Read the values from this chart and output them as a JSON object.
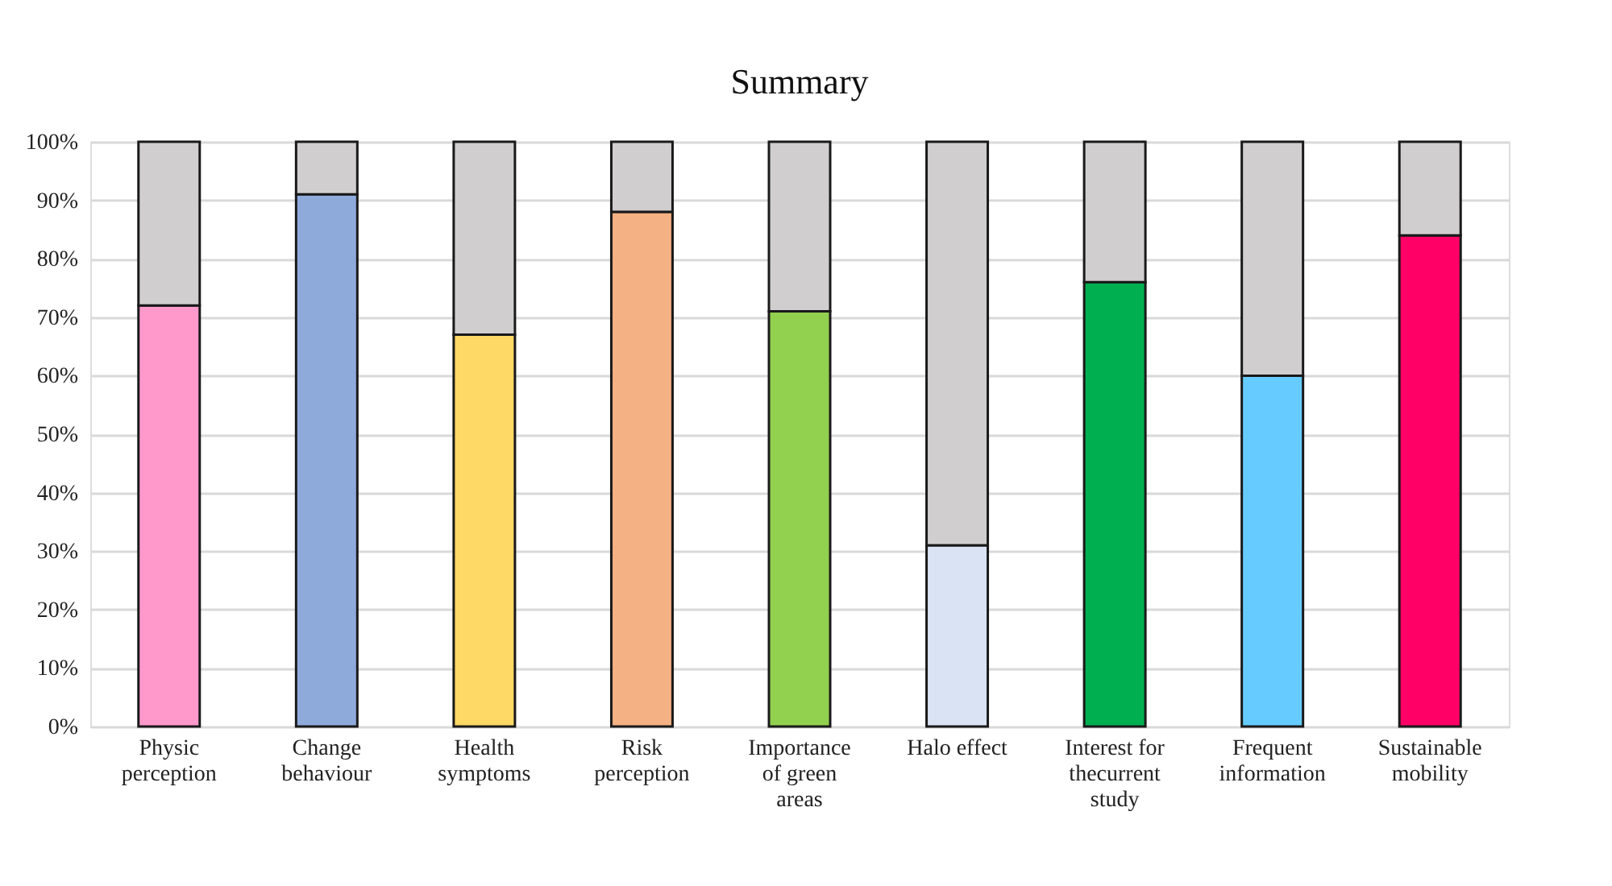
{
  "chart_data": {
    "type": "bar",
    "title": "Summary",
    "stacked": true,
    "categories": [
      "Physic perception",
      "Change behaviour",
      "Health symptoms",
      "Risk perception",
      "Importance of green areas",
      "Halo effect",
      "Interest for thecurrent study",
      "Frequent information",
      "Sustainable mobility"
    ],
    "series": [
      {
        "colors": [
          "#ff99cc",
          "#8eaadb",
          "#ffd966",
          "#f4b183",
          "#92d050",
          "#dae3f3",
          "#00b050",
          "#66ccff",
          "#ff0066"
        ],
        "values": [
          72,
          91,
          67,
          88,
          71,
          31,
          76,
          60,
          84
        ]
      },
      {
        "color": "#d0cece",
        "values": [
          28,
          9,
          33,
          12,
          29,
          69,
          24,
          40,
          16
        ]
      }
    ],
    "ylim": [
      0,
      100
    ],
    "yticks": [
      {
        "value": 0,
        "label": "0%"
      },
      {
        "value": 10,
        "label": "10%"
      },
      {
        "value": 20,
        "label": "20%"
      },
      {
        "value": 30,
        "label": "30%"
      },
      {
        "value": 40,
        "label": "40%"
      },
      {
        "value": 50,
        "label": "50%"
      },
      {
        "value": 60,
        "label": "60%"
      },
      {
        "value": 70,
        "label": "70%"
      },
      {
        "value": 80,
        "label": "80%"
      },
      {
        "value": 90,
        "label": "90%"
      },
      {
        "value": 100,
        "label": "100%"
      }
    ],
    "grid": "y"
  }
}
